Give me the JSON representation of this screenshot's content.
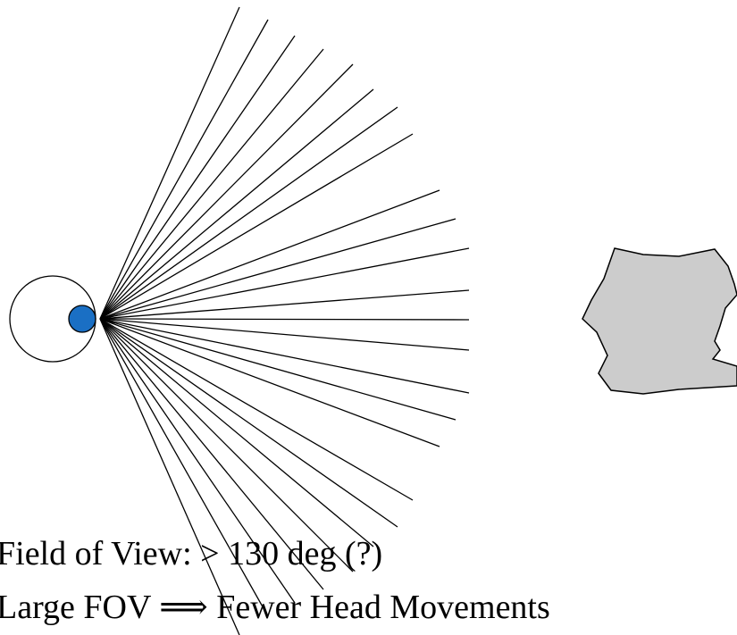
{
  "caption": {
    "fov": "Field of View: > 130 deg (?)",
    "tradeoff": "Large FOV ⟹ Fewer Head Movements"
  }
}
